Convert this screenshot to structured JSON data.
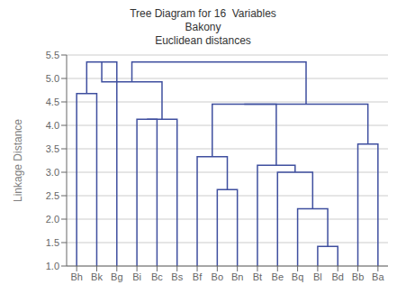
{
  "chart_data": {
    "type": "dendrogram",
    "title": "Tree Diagram for 16  Variables\nBakony\nEuclidean distances",
    "ylabel": "Linkage Distance",
    "categories": [
      "Bh",
      "Bk",
      "Bg",
      "Bi",
      "Bc",
      "Bs",
      "Bf",
      "Bo",
      "Bn",
      "Bt",
      "Be",
      "Bq",
      "Bl",
      "Bd",
      "Bb",
      "Ba"
    ],
    "merges": [
      [
        0,
        1,
        4.68
      ],
      [
        16,
        2,
        5.35
      ],
      [
        3,
        4,
        4.13
      ],
      [
        18,
        5,
        4.13
      ],
      [
        17,
        19,
        4.93
      ],
      [
        7,
        8,
        2.63
      ],
      [
        6,
        21,
        3.33
      ],
      [
        12,
        13,
        1.42
      ],
      [
        11,
        23,
        2.22
      ],
      [
        10,
        24,
        3.0
      ],
      [
        9,
        25,
        3.15
      ],
      [
        22,
        26,
        4.45
      ],
      [
        14,
        15,
        3.6
      ],
      [
        27,
        28,
        4.45
      ],
      [
        20,
        29,
        5.35
      ]
    ],
    "color": "#3f4f9f",
    "ylim": [
      1.0,
      5.5
    ],
    "yticks": [
      {
        "value": 1.0,
        "label": "1.0"
      },
      1.5,
      {
        "value": 2.0,
        "label": "2.0"
      },
      2.5,
      {
        "value": 3.0,
        "label": "3.0"
      },
      3.5,
      {
        "value": 4.0,
        "label": "4.0"
      },
      4.5,
      {
        "value": 5.0,
        "label": "5.0"
      },
      5.5
    ],
    "grid": true
  }
}
